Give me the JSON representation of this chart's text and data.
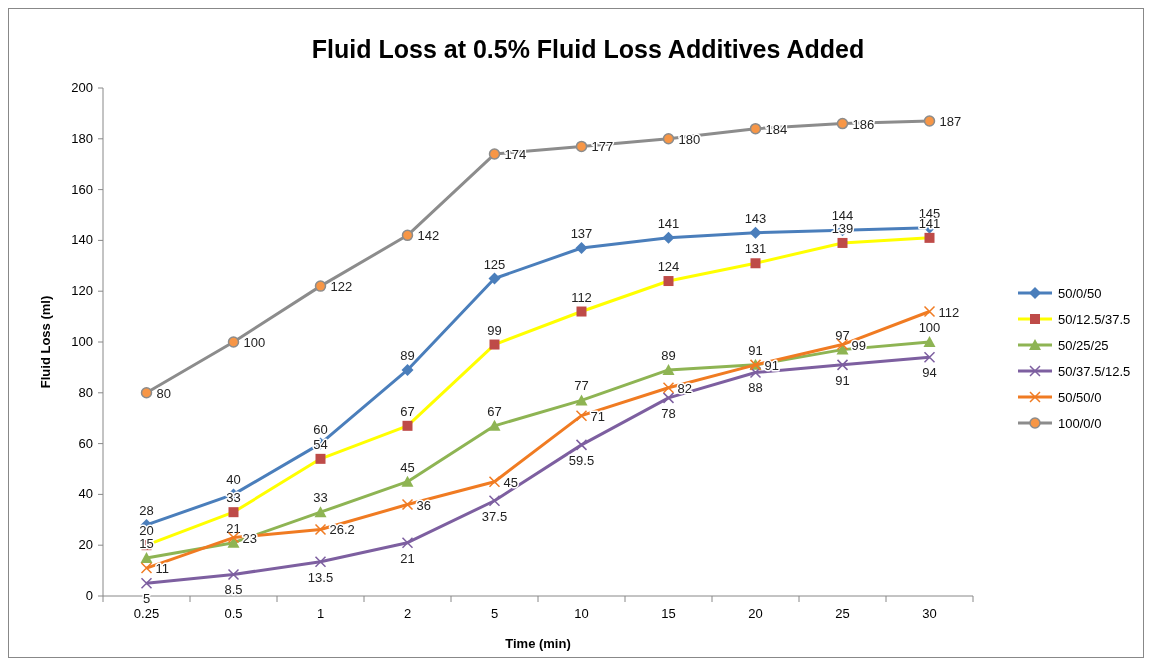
{
  "chart_data": {
    "type": "line",
    "title": "Fluid Loss at 0.5% Fluid Loss Additives Added",
    "xlabel": "Time (min)",
    "ylabel": "Fluid Loss (ml)",
    "categories": [
      "0.25",
      "0.5",
      "1",
      "2",
      "5",
      "10",
      "15",
      "20",
      "25",
      "30"
    ],
    "ylim": [
      0,
      200
    ],
    "yticks": [
      0,
      20,
      40,
      60,
      80,
      100,
      120,
      140,
      160,
      180,
      200
    ],
    "grid": false,
    "legend": "right",
    "data_labels": true,
    "series": [
      {
        "name": "50/0/50",
        "color": "#4a7ebb",
        "marker": "diamond",
        "values": [
          28,
          40,
          60,
          89,
          125,
          137,
          141,
          143,
          144,
          145
        ]
      },
      {
        "name": "50/12.5/37.5",
        "color": "#ffff00",
        "marker": "square",
        "values": [
          20,
          33,
          54,
          67,
          99,
          112,
          124,
          131,
          139,
          141
        ]
      },
      {
        "name": "50/25/25",
        "color": "#8eb453",
        "marker": "triangle",
        "values": [
          15,
          21,
          33,
          45,
          67,
          77,
          89,
          91,
          97,
          100
        ]
      },
      {
        "name": "50/37.5/12.5",
        "color": "#7d5fa0",
        "marker": "cross",
        "values": [
          5,
          8.5,
          13.5,
          21,
          37.5,
          59.5,
          78,
          88,
          91,
          94
        ]
      },
      {
        "name": "50/50/0",
        "color": "#f07b22",
        "marker": "cross",
        "values": [
          11,
          23,
          26.2,
          36,
          45,
          71,
          82,
          91,
          99,
          112
        ]
      },
      {
        "name": "100/0/0",
        "color": "#8c8c8c",
        "marker": "circle",
        "values": [
          80,
          100,
          122,
          142,
          174,
          177,
          180,
          184,
          186,
          187
        ]
      }
    ]
  }
}
